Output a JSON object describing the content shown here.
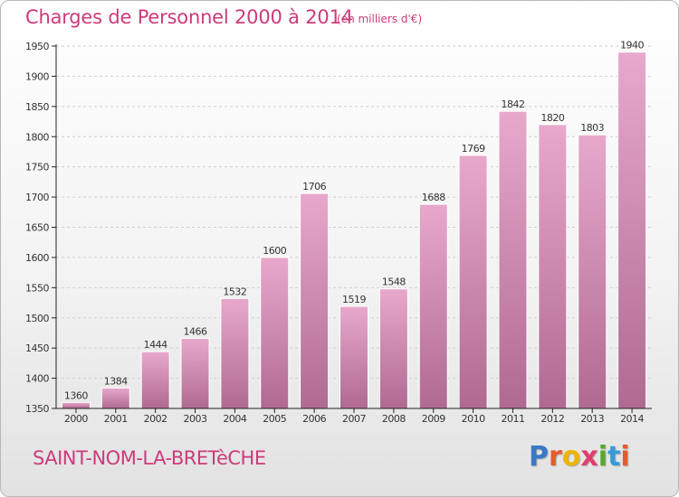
{
  "header": {
    "title": "Charges de Personnel 2000 à 2014",
    "subtitle": "(en milliers d'€)"
  },
  "footer": {
    "commune": "SAINT-NOM-LA-BRETèCHE",
    "logo_letters": [
      "P",
      "r",
      "o",
      "x",
      "i",
      "t",
      "i"
    ],
    "logo_colors": [
      "#3a78c8",
      "#e85a2a",
      "#f0b400",
      "#e23d6e",
      "#5aa82c",
      "#3a9ad8",
      "#e85a2a"
    ]
  },
  "chart_data": {
    "type": "bar",
    "title": "Charges de Personnel 2000 à 2014",
    "subtitle": "(en milliers d'€)",
    "categories": [
      "2000",
      "2001",
      "2002",
      "2003",
      "2004",
      "2005",
      "2006",
      "2007",
      "2008",
      "2009",
      "2010",
      "2011",
      "2012",
      "2013",
      "2014"
    ],
    "values": [
      1360,
      1384,
      1444,
      1466,
      1532,
      1600,
      1706,
      1519,
      1548,
      1688,
      1769,
      1842,
      1820,
      1803,
      1940
    ],
    "ylim": [
      1350,
      1950
    ],
    "yticks": [
      1350,
      1400,
      1450,
      1500,
      1550,
      1600,
      1650,
      1700,
      1750,
      1800,
      1850,
      1900,
      1950
    ],
    "grid": true,
    "colors": {
      "bar_top": "#e8a8cc",
      "bar_bottom": "#b06a92",
      "grid": "#cfcfcf",
      "axis": "#222222"
    }
  }
}
